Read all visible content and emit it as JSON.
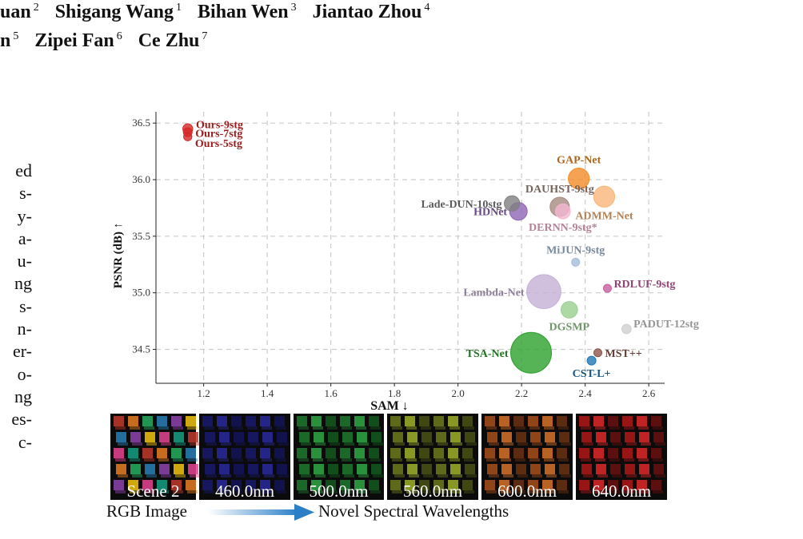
{
  "authors": {
    "line1": [
      {
        "name": "uan",
        "sup": "2"
      },
      {
        "name": "Shigang Wang",
        "sup": "1"
      },
      {
        "name": "Bihan Wen",
        "sup": "3"
      },
      {
        "name": "Jiantao Zhou",
        "sup": "4"
      }
    ],
    "line2": [
      {
        "name": "n",
        "sup": "5"
      },
      {
        "name": "Zipei Fan",
        "sup": "6"
      },
      {
        "name": "Ce Zhu",
        "sup": "7"
      }
    ]
  },
  "body_fragments": [
    "ed",
    "s-",
    "y-",
    "a-",
    "u-",
    "ng",
    "s-",
    "n-",
    "er-",
    "o-",
    "ng",
    "es-",
    "c-"
  ],
  "chart_data": {
    "type": "scatter",
    "xlabel": "SAM ↓",
    "ylabel": "PSNR (dB) ↑",
    "xlim": [
      1.05,
      2.65
    ],
    "ylim": [
      34.2,
      36.6
    ],
    "xticks": [
      "1.2",
      "1.4",
      "1.6",
      "1.8",
      "2.0",
      "2.2",
      "2.4",
      "2.6"
    ],
    "yticks": [
      "34.5",
      "35.0",
      "35.5",
      "36.0",
      "36.5"
    ],
    "grid": true,
    "points": [
      {
        "label": "Ours-9stg",
        "x": 1.15,
        "y": 36.45,
        "size": 0.18,
        "color": "#d62728",
        "label_pos": "right"
      },
      {
        "label": "Ours-7stg",
        "x": 1.15,
        "y": 36.42,
        "size": 0.16,
        "color": "#d62728",
        "label_pos": "right"
      },
      {
        "label": "Ours-5stg",
        "x": 1.15,
        "y": 36.38,
        "size": 0.15,
        "color": "#d62728",
        "label_pos": "right"
      },
      {
        "label": "GAP-Net",
        "x": 2.38,
        "y": 36.01,
        "size": 0.38,
        "color": "#f28c28",
        "label_pos": "above"
      },
      {
        "label": "ADMM-Net",
        "x": 2.46,
        "y": 35.85,
        "size": 0.38,
        "color": "#f9b57a",
        "label_pos": "below"
      },
      {
        "label": "DAUHST-9stg",
        "x": 2.32,
        "y": 35.76,
        "size": 0.35,
        "color": "#a58a80",
        "label_pos": "above"
      },
      {
        "label": "DERNN-9stg*",
        "x": 2.33,
        "y": 35.72,
        "size": 0.27,
        "color": "#f4b6d2",
        "label_pos": "below"
      },
      {
        "label": "Lade-DUN-10stg",
        "x": 2.17,
        "y": 35.79,
        "size": 0.28,
        "color": "#7f7f7f",
        "label_pos": "left"
      },
      {
        "label": "HDNet",
        "x": 2.19,
        "y": 35.72,
        "size": 0.32,
        "color": "#8e64b5",
        "label_pos": "left"
      },
      {
        "label": "MiJUN-9stg",
        "x": 2.37,
        "y": 35.27,
        "size": 0.12,
        "color": "#a6bddb",
        "label_pos": "above"
      },
      {
        "label": "RDLUF-9stg",
        "x": 2.47,
        "y": 35.04,
        "size": 0.14,
        "color": "#c85fa0",
        "label_pos": "above-right"
      },
      {
        "label": "Lambda-Net",
        "x": 2.27,
        "y": 35.01,
        "size": 0.62,
        "color": "#c5b0d5",
        "label_pos": "left"
      },
      {
        "label": "DGSMP",
        "x": 2.35,
        "y": 34.85,
        "size": 0.3,
        "color": "#98d08e",
        "label_pos": "below"
      },
      {
        "label": "PADUT-12stg",
        "x": 2.53,
        "y": 34.68,
        "size": 0.17,
        "color": "#cfcfcf",
        "label_pos": "above-right"
      },
      {
        "label": "TSA-Net",
        "x": 2.23,
        "y": 34.47,
        "size": 0.74,
        "color": "#2ca02c",
        "label_pos": "left"
      },
      {
        "label": "MST++",
        "x": 2.44,
        "y": 34.47,
        "size": 0.14,
        "color": "#8c564b",
        "label_pos": "right"
      },
      {
        "label": "CST-L+",
        "x": 2.42,
        "y": 34.4,
        "size": 0.16,
        "color": "#1f77b4",
        "label_pos": "below"
      }
    ]
  },
  "figure_strip": {
    "panels": [
      {
        "label": "Scene 2",
        "palette": [
          "#c0392b",
          "#e67e22",
          "#27ae60",
          "#2980b9",
          "#8e44ad",
          "#f1c40f",
          "#e84393",
          "#16a085"
        ]
      },
      {
        "label": "460.0nm",
        "palette": [
          "#1a1a6e",
          "#2a2a9e",
          "#14145a"
        ]
      },
      {
        "label": "500.0nm",
        "palette": [
          "#1d7a2e",
          "#2fa845",
          "#145a20"
        ]
      },
      {
        "label": "560.0nm",
        "palette": [
          "#6f7a1d",
          "#a0b02a",
          "#4a5214"
        ]
      },
      {
        "label": "600.0nm",
        "palette": [
          "#a8501c",
          "#d8722a",
          "#6a3212"
        ]
      },
      {
        "label": "640.0nm",
        "palette": [
          "#b01818",
          "#e02828",
          "#6a1010"
        ]
      }
    ],
    "caption_left": "RGB Image",
    "caption_right": "Novel Spectral Wavelengths"
  }
}
